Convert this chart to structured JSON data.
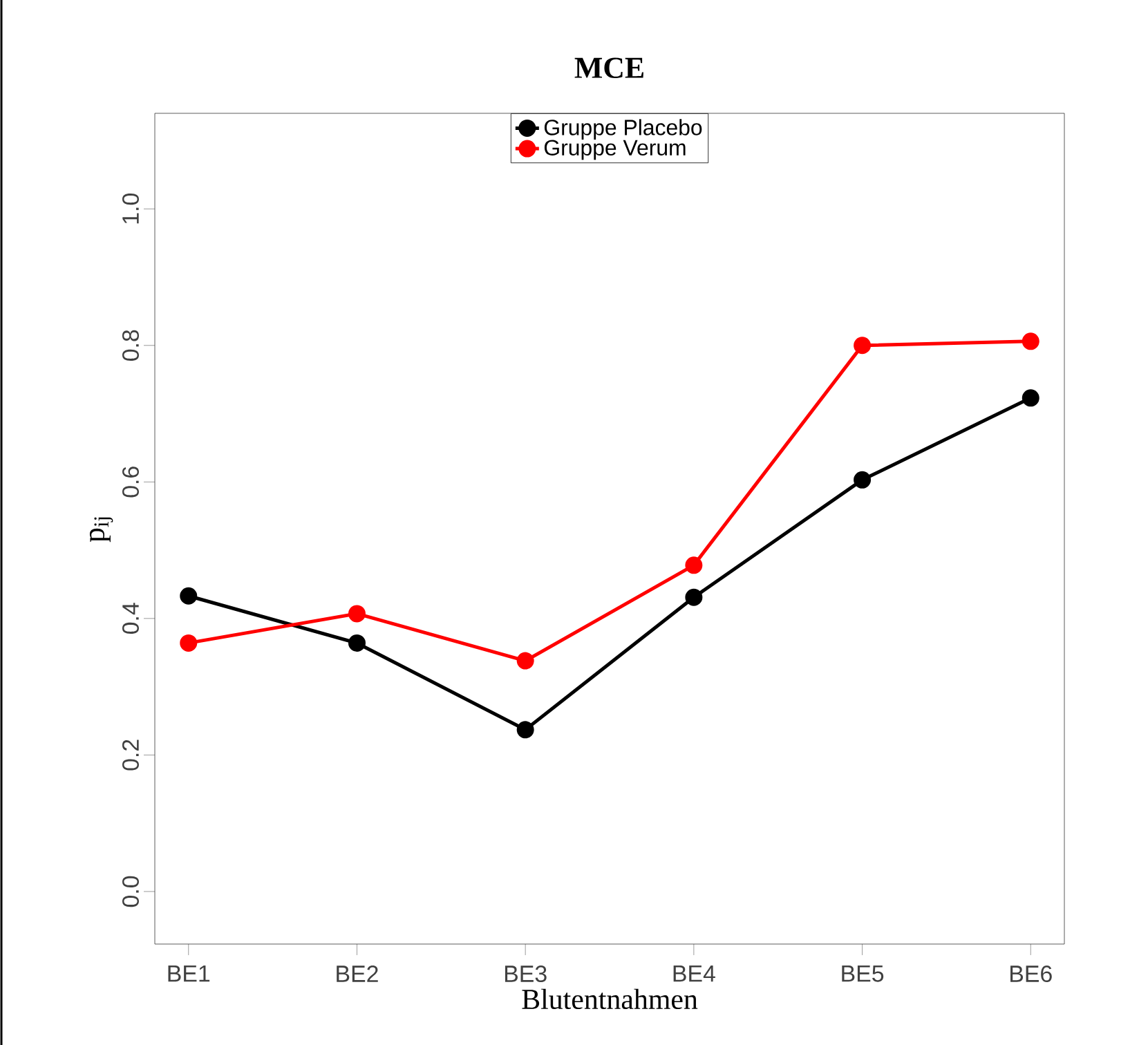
{
  "chart_data": {
    "type": "line",
    "title": "MCE",
    "xlabel": "Blutentnahmen",
    "ylabel": "p$_{ij}$",
    "categories": [
      "BE1",
      "BE2",
      "BE3",
      "BE4",
      "BE5",
      "BE6"
    ],
    "series": [
      {
        "name": "Gruppe Placebo",
        "color": "#000000",
        "values": [
          0.433,
          0.364,
          0.237,
          0.431,
          0.603,
          0.723
        ]
      },
      {
        "name": "Gruppe Verum",
        "color": "#ff0000",
        "values": [
          0.364,
          0.407,
          0.338,
          0.478,
          0.8,
          0.806
        ]
      }
    ],
    "ylim": [
      -0.077,
      1.14
    ],
    "yticks": [
      {
        "value": 0,
        "label": "0.0"
      },
      0.2,
      0.4,
      0.6,
      0.8,
      {
        "value": 1,
        "label": "1.0"
      }
    ],
    "grid": false,
    "legend": "top",
    "marker": "circle",
    "line_style": "solid"
  }
}
